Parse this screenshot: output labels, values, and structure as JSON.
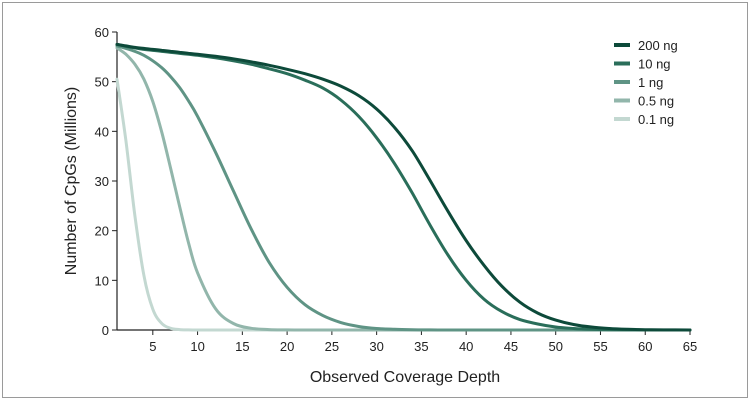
{
  "chart_data": {
    "type": "line",
    "xlabel": "Observed Coverage Depth",
    "ylabel": "Number of CpGs (Millions)",
    "xlim": [
      1,
      65
    ],
    "ylim": [
      0,
      60
    ],
    "x_ticks": [
      5,
      10,
      15,
      20,
      25,
      30,
      35,
      40,
      45,
      50,
      55,
      60,
      65
    ],
    "y_ticks": [
      0,
      10,
      20,
      30,
      40,
      50,
      60
    ],
    "legend_position": "top-right",
    "x": [
      1,
      2,
      3,
      4,
      5,
      6,
      7,
      8,
      9,
      10,
      12,
      14,
      16,
      18,
      20,
      22,
      24,
      26,
      28,
      30,
      32,
      34,
      36,
      38,
      40,
      42,
      44,
      46,
      48,
      50,
      52,
      54,
      56,
      58,
      60,
      62,
      65
    ],
    "series": [
      {
        "name": "200 ng",
        "color": "#0d4a3a",
        "values": [
          57.5,
          57.2,
          56.9,
          56.7,
          56.5,
          56.3,
          56.1,
          55.9,
          55.7,
          55.5,
          55.1,
          54.6,
          54.0,
          53.3,
          52.5,
          51.6,
          50.5,
          49.1,
          47.2,
          44.5,
          40.8,
          36.0,
          30.0,
          23.8,
          18.0,
          13.0,
          8.8,
          5.6,
          3.4,
          2.0,
          1.1,
          0.6,
          0.3,
          0.15,
          0.07,
          0.03,
          0.0
        ]
      },
      {
        "name": "10 ng",
        "color": "#2a6e5a",
        "values": [
          57.5,
          57.1,
          56.8,
          56.5,
          56.3,
          56.1,
          55.9,
          55.7,
          55.5,
          55.3,
          54.8,
          54.2,
          53.5,
          52.6,
          51.6,
          50.3,
          48.7,
          46.3,
          43.0,
          38.7,
          33.5,
          27.5,
          21.0,
          15.0,
          10.0,
          6.2,
          3.7,
          2.1,
          1.2,
          0.6,
          0.3,
          0.15,
          0.07,
          0.03,
          0.01,
          0.0,
          0.0
        ]
      },
      {
        "name": "1 ng",
        "color": "#5f9485",
        "values": [
          57.2,
          56.7,
          56.1,
          55.3,
          54.2,
          52.8,
          51.0,
          48.8,
          46.1,
          43.0,
          35.8,
          28.0,
          20.3,
          13.6,
          8.6,
          5.1,
          2.9,
          1.5,
          0.7,
          0.3,
          0.15,
          0.06,
          0.02,
          0.0,
          0.0,
          0.0,
          0.0,
          0.0,
          0.0,
          0.0,
          0.0,
          0.0,
          0.0,
          0.0,
          0.0,
          0.0,
          0.0
        ]
      },
      {
        "name": "0.5 ng",
        "color": "#92b6ab",
        "values": [
          56.8,
          55.5,
          53.5,
          50.5,
          46.0,
          39.8,
          32.5,
          24.8,
          17.5,
          11.5,
          4.3,
          1.3,
          0.35,
          0.08,
          0.02,
          0.0,
          0.0,
          0.0,
          0.0,
          0.0,
          0.0,
          0.0,
          0.0,
          0.0,
          0.0,
          0.0,
          0.0,
          0.0,
          0.0,
          0.0,
          0.0,
          0.0,
          0.0,
          0.0,
          0.0,
          0.0,
          0.0
        ]
      },
      {
        "name": "0.1 ng",
        "color": "#c3d8d1",
        "values": [
          50.5,
          38.0,
          23.0,
          11.0,
          4.2,
          1.3,
          0.35,
          0.08,
          0.02,
          0.0,
          0.0,
          0.0,
          0.0,
          0.0,
          0.0,
          0.0,
          0.0,
          0.0,
          0.0,
          0.0,
          0.0,
          0.0,
          0.0,
          0.0,
          0.0,
          0.0,
          0.0,
          0.0,
          0.0,
          0.0,
          0.0,
          0.0,
          0.0,
          0.0,
          0.0,
          0.0,
          0.0
        ]
      }
    ]
  }
}
